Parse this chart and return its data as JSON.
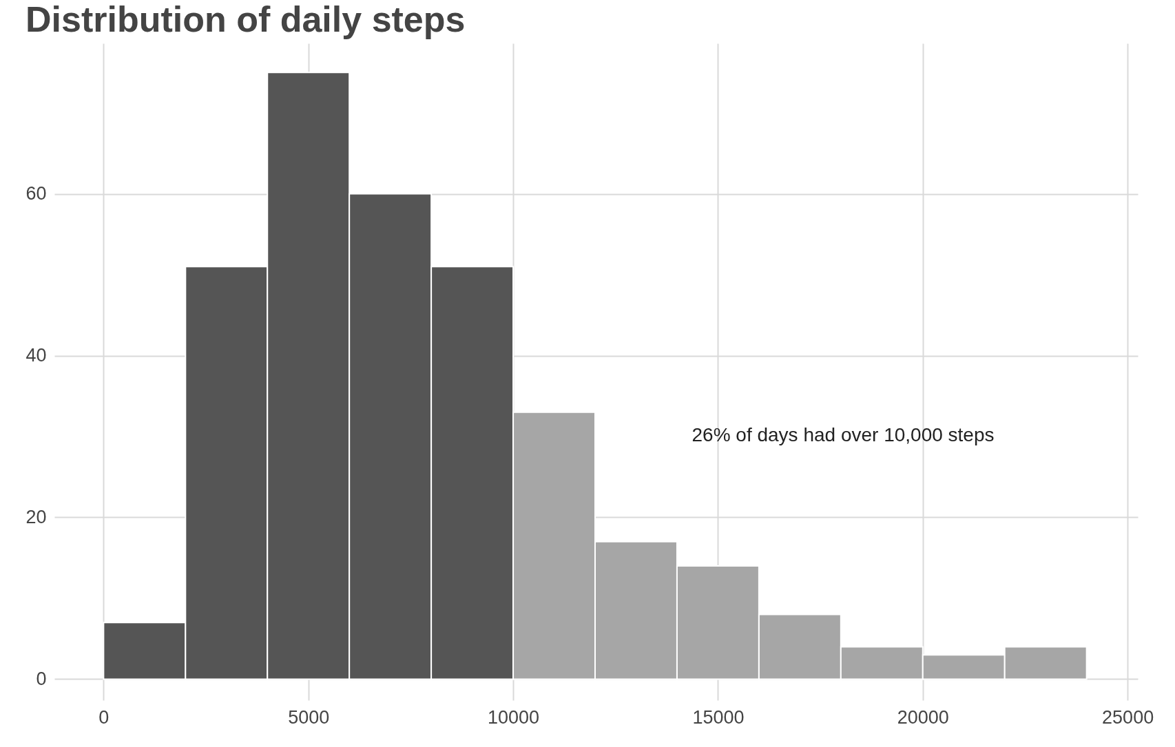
{
  "chart_data": {
    "type": "histogram",
    "title": "Distribution of daily steps",
    "bins": [
      0,
      2000,
      4000,
      6000,
      8000,
      10000,
      12000,
      14000,
      16000,
      18000,
      20000,
      22000,
      24000
    ],
    "values": [
      7,
      51,
      75,
      60,
      51,
      33,
      17,
      14,
      8,
      4,
      3,
      4
    ],
    "colors": [
      "#555555",
      "#555555",
      "#555555",
      "#555555",
      "#555555",
      "#a6a6a6",
      "#a6a6a6",
      "#a6a6a6",
      "#a6a6a6",
      "#a6a6a6",
      "#a6a6a6",
      "#a6a6a6"
    ],
    "xlim": [
      -1200,
      25250
    ],
    "xticks": [
      0,
      5000,
      10000,
      15000,
      20000,
      25000
    ],
    "ylim": [
      -2.6,
      78.6
    ],
    "yticks": [
      0,
      20,
      40,
      60
    ],
    "grid": true,
    "annotations": [
      "26% of days had over 10,000 steps"
    ]
  }
}
